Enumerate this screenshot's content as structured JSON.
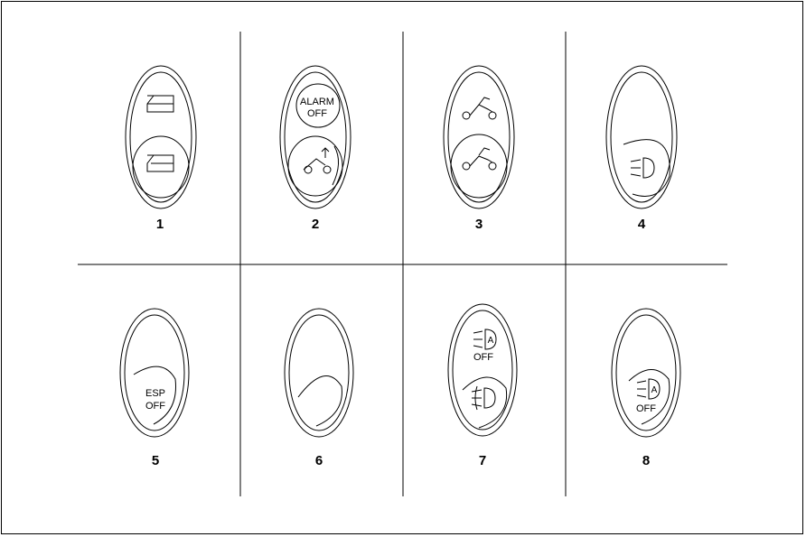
{
  "buttons": [
    {
      "number": "1",
      "icons": [
        "door-open-icon",
        "door-closed-icon"
      ]
    },
    {
      "number": "2",
      "labels": [
        "ALARM",
        "OFF"
      ],
      "icons": [
        "alarm-off-icon",
        "tow-icon"
      ]
    },
    {
      "number": "3",
      "icons": [
        "tilt-sensor-icon",
        "car-icon"
      ]
    },
    {
      "number": "4",
      "icons": [
        "headlight-icon"
      ]
    },
    {
      "number": "5",
      "labels": [
        "ESP",
        "OFF"
      ],
      "icons": [
        "esp-off-icon"
      ]
    },
    {
      "number": "6",
      "icons": [
        "blank-icon"
      ]
    },
    {
      "number": "7",
      "labels": [
        "OFF"
      ],
      "icons": [
        "auto-light-icon",
        "fog-light-icon"
      ]
    },
    {
      "number": "8",
      "labels": [
        "OFF"
      ],
      "icons": [
        "auto-light-off-icon"
      ]
    }
  ]
}
